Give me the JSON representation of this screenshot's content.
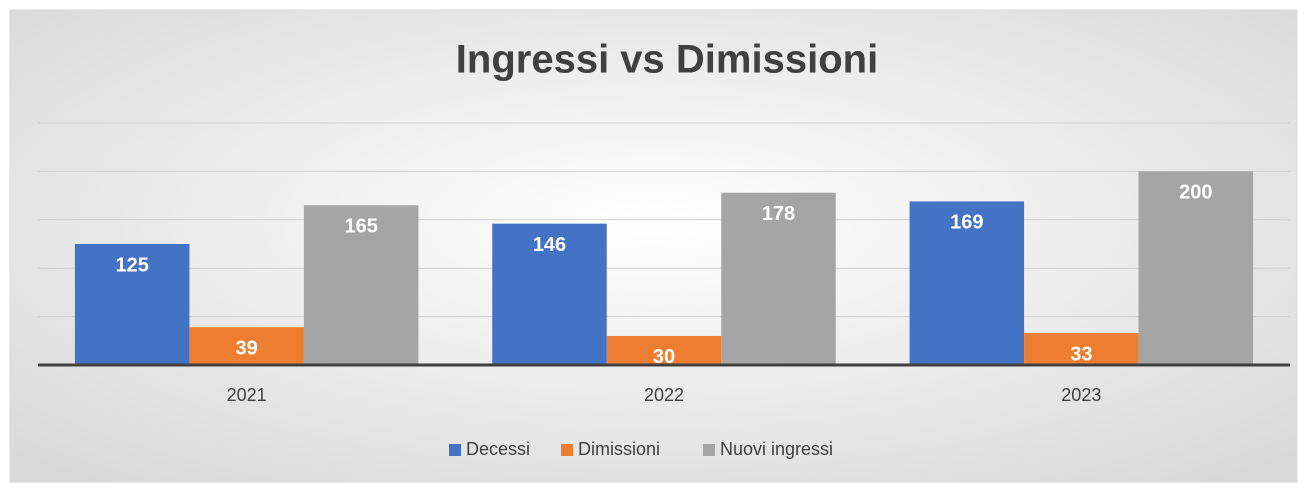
{
  "chart_data": {
    "type": "bar",
    "title": "Ingressi vs Dimissioni",
    "categories": [
      "2021",
      "2022",
      "2023"
    ],
    "series": [
      {
        "name": "Decessi",
        "color": "#4472c4",
        "values": [
          125,
          146,
          169
        ]
      },
      {
        "name": "Dimissioni",
        "color": "#ed7d31",
        "values": [
          39,
          30,
          33
        ]
      },
      {
        "name": "Nuovi ingressi",
        "color": "#a5a5a5",
        "values": [
          165,
          178,
          200
        ]
      }
    ],
    "ylim": [
      0,
      250
    ],
    "yticks": [
      0,
      50,
      100,
      150,
      200,
      250
    ],
    "grid": true,
    "legend": "bottom"
  }
}
